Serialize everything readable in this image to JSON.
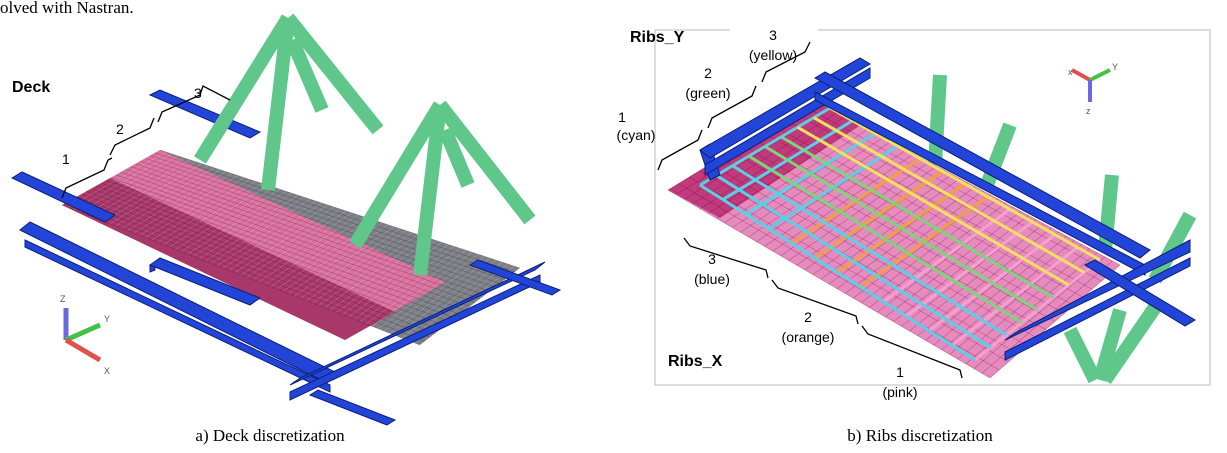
{
  "header_text": "olved with Nastran.",
  "panel_a": {
    "title": "Deck",
    "zones": [
      "1",
      "2",
      "3"
    ],
    "axes": [
      "Z",
      "Y",
      "X"
    ],
    "caption": "a) Deck discretization"
  },
  "panel_b": {
    "rib_y_title": "Ribs_Y",
    "ribs_y": [
      {
        "number": "1",
        "name": "(cyan)"
      },
      {
        "number": "2",
        "name": "(green)"
      },
      {
        "number": "3",
        "name": "(yellow)"
      }
    ],
    "rib_x_title": "Ribs_X",
    "ribs_x": [
      {
        "number": "3",
        "name": "(blue)"
      },
      {
        "number": "2",
        "name": "(orange)"
      },
      {
        "number": "1",
        "name": "(pink)"
      }
    ],
    "axes": [
      "x",
      "Y",
      "z"
    ],
    "caption": "b) Ribs discretization"
  }
}
